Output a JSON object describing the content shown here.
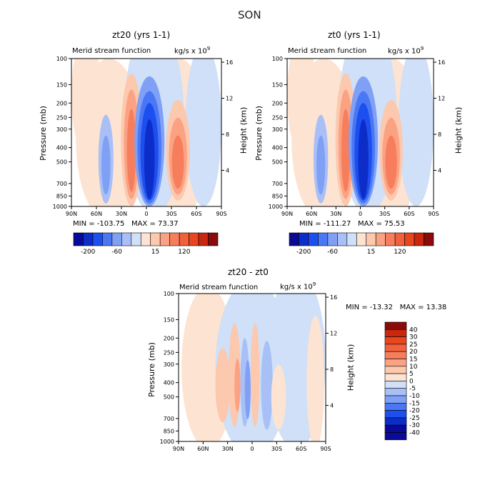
{
  "figure_title": "SON",
  "panels": [
    {
      "title": "zt20 (yrs 1-1)",
      "left_label": "Merid stream function",
      "units": "kg/s x 10",
      "units_exp": "9",
      "min_text": "MIN = -103.75",
      "max_text": "MAX = 73.37",
      "colorbar_ticks": [
        "-200",
        "-60",
        "15",
        "120"
      ]
    },
    {
      "title": "zt0 (yrs 1-1)",
      "left_label": "Merid stream function",
      "units": "kg/s x 10",
      "units_exp": "9",
      "min_text": "MIN = -111.27",
      "max_text": "MAX = 75.53",
      "colorbar_ticks": [
        "-200",
        "-60",
        "15",
        "120"
      ]
    },
    {
      "title": "zt20 - zt0",
      "left_label": "Merid stream function",
      "units": "kg/s x 10",
      "units_exp": "9",
      "min_text": "MIN = -13.32",
      "max_text": "MAX = 13.38",
      "colorbar_ticks": [
        "40",
        "30",
        "25",
        "20",
        "15",
        "10",
        "5",
        "0",
        "-5",
        "-10",
        "-15",
        "-20",
        "-25",
        "-30",
        "-40"
      ]
    }
  ],
  "axes": {
    "ylabel": "Pressure (mb)",
    "ylabel_right": "Height (km)",
    "pressure_ticks": [
      "100",
      "150",
      "200",
      "250",
      "300",
      "400",
      "500",
      "700",
      "850",
      "1000"
    ],
    "height_ticks": [
      "16",
      "12",
      "8",
      "4"
    ],
    "lat_ticks": [
      "90N",
      "60N",
      "30N",
      "0",
      "30S",
      "60S",
      "90S"
    ]
  },
  "colors": {
    "m6": "#0a0a96",
    "m5": "#0d2dc8",
    "m4": "#1d4ef0",
    "m3": "#4a78f5",
    "m2": "#7fa0f5",
    "m1": "#a9c0f7",
    "m0": "#cfe0f8",
    "p0": "#fde3d2",
    "p1": "#fcc8ae",
    "p2": "#fba283",
    "p3": "#f77e5c",
    "p4": "#f2603c",
    "p5": "#e8461e",
    "p6": "#c9280e",
    "p7": "#8b0a0a"
  },
  "chart_data": [
    {
      "type": "contour",
      "title": "zt20 (yrs 1-1)",
      "variable": "Merid stream function",
      "units": "kg/s x 10^9",
      "x": "latitude (90N to 90S)",
      "y": "pressure (mb, 100 to 1000)",
      "min": -103.75,
      "max": 73.37,
      "colorbar_levels": [
        -200,
        -60,
        15,
        120
      ]
    },
    {
      "type": "contour",
      "title": "zt0 (yrs 1-1)",
      "variable": "Merid stream function",
      "units": "kg/s x 10^9",
      "x": "latitude (90N to 90S)",
      "y": "pressure (mb, 100 to 1000)",
      "min": -111.27,
      "max": 75.53,
      "colorbar_levels": [
        -200,
        -60,
        15,
        120
      ]
    },
    {
      "type": "contour",
      "title": "zt20 - zt0",
      "variable": "Merid stream function",
      "units": "kg/s x 10^9",
      "x": "latitude (90N to 90S)",
      "y": "pressure (mb, 100 to 1000)",
      "min": -13.32,
      "max": 13.38,
      "colorbar_levels": [
        40,
        30,
        25,
        20,
        15,
        10,
        5,
        0,
        -5,
        -10,
        -15,
        -20,
        -25,
        -30,
        -40
      ]
    }
  ]
}
